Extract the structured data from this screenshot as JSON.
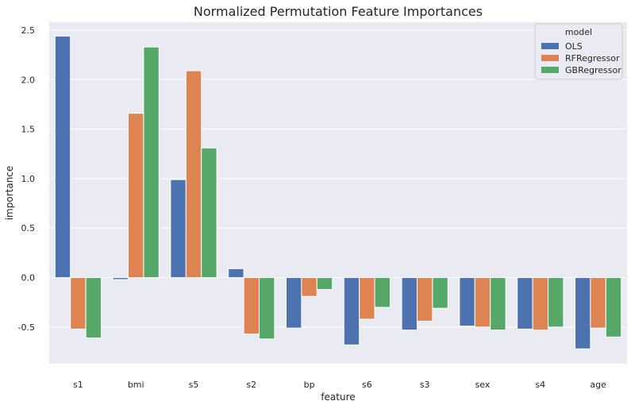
{
  "chart_data": {
    "type": "bar",
    "title": "Normalized Permutation Feature Importances",
    "xlabel": "feature",
    "ylabel": "importance",
    "categories": [
      "s1",
      "bmi",
      "s5",
      "s2",
      "bp",
      "s6",
      "s3",
      "sex",
      "s4",
      "age"
    ],
    "series": [
      {
        "name": "OLS",
        "color": "#4c72b0",
        "values": [
          2.44,
          -0.02,
          0.99,
          0.09,
          -0.51,
          -0.68,
          -0.53,
          -0.49,
          -0.52,
          -0.72
        ]
      },
      {
        "name": "RFRegressor",
        "color": "#dd8452",
        "values": [
          -0.52,
          1.66,
          2.09,
          -0.57,
          -0.19,
          -0.42,
          -0.44,
          -0.5,
          -0.53,
          -0.51
        ]
      },
      {
        "name": "GBRegressor",
        "color": "#55a868",
        "values": [
          -0.61,
          2.33,
          1.31,
          -0.62,
          -0.12,
          -0.3,
          -0.31,
          -0.53,
          -0.5,
          -0.6
        ]
      }
    ],
    "ylim": [
      -0.87,
      2.58
    ],
    "yticks": [
      "-0.5",
      "0.0",
      "0.5",
      "1.0",
      "1.5",
      "2.0",
      "2.5"
    ],
    "legend": {
      "title": "model",
      "location": "top-right"
    },
    "background": "#eaeaf2",
    "grid": true
  }
}
